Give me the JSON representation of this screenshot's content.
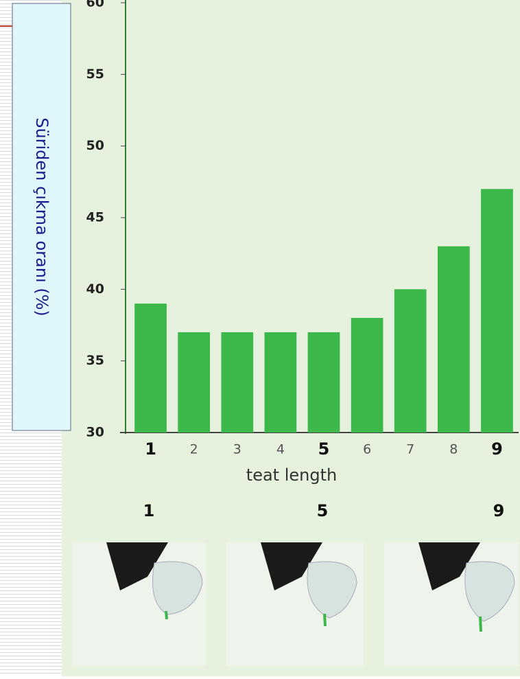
{
  "chart_data": {
    "type": "bar",
    "y_label": "Süriden çıkma oranı (%)",
    "x_label": "teat length",
    "categories": [
      "1",
      "2",
      "3",
      "4",
      "5",
      "6",
      "7",
      "8",
      "9"
    ],
    "values": [
      39,
      37,
      37,
      37,
      37,
      38,
      40,
      43,
      47
    ],
    "color": "#3cb84a",
    "ylim": [
      30,
      60
    ],
    "yticks": [
      30,
      35,
      40,
      45,
      50,
      55,
      60
    ],
    "grid": false
  },
  "figure_labels": [
    "1",
    "5",
    "9"
  ]
}
